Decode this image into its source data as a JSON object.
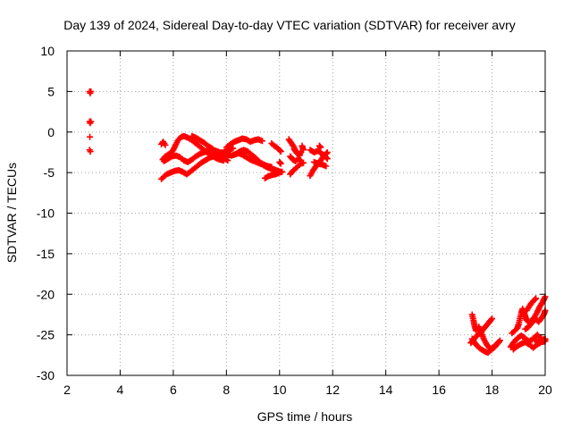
{
  "chart_data": {
    "type": "scatter",
    "title": "Day 139 of 2024, Sidereal Day-to-day VTEC variation (SDTVAR) for receiver avry",
    "xlabel": "GPS time / hours",
    "ylabel": "SDTVAR / TECUs",
    "xlim": [
      2,
      20
    ],
    "ylim": [
      -30,
      10
    ],
    "xticks": [
      2,
      4,
      6,
      8,
      10,
      12,
      14,
      16,
      18,
      20
    ],
    "yticks": [
      -30,
      -25,
      -20,
      -15,
      -10,
      -5,
      0,
      5,
      10
    ],
    "grid": true,
    "marker": "+",
    "colors": {
      "series": "#ff0000",
      "axis": "#000000",
      "grid": "#a0a0a0"
    },
    "series": [
      {
        "name": "SDTVAR",
        "segments": [
          [
            [
              2.85,
              5.0
            ],
            [
              2.87,
              4.8
            ],
            [
              2.9,
              5.0
            ]
          ],
          [
            [
              2.85,
              1.3
            ],
            [
              2.87,
              1.1
            ],
            [
              2.9,
              1.3
            ]
          ],
          [
            [
              2.86,
              -0.6
            ]
          ],
          [
            [
              2.85,
              -2.2
            ],
            [
              2.88,
              -2.4
            ]
          ],
          [
            [
              5.55,
              -1.5
            ],
            [
              5.62,
              -1.2
            ],
            [
              5.7,
              -1.6
            ]
          ],
          [
            [
              5.6,
              -3.4
            ],
            [
              5.7,
              -3.0
            ],
            [
              5.8,
              -2.8
            ],
            [
              5.9,
              -2.6
            ],
            [
              6.0,
              -2.2
            ],
            [
              6.1,
              -1.5
            ],
            [
              6.2,
              -0.9
            ],
            [
              6.3,
              -0.6
            ],
            [
              6.4,
              -0.5
            ],
            [
              6.55,
              -0.7
            ],
            [
              6.7,
              -1.0
            ],
            [
              6.85,
              -1.4
            ],
            [
              7.0,
              -1.8
            ],
            [
              7.15,
              -2.2
            ],
            [
              7.3,
              -2.6
            ],
            [
              7.45,
              -2.9
            ],
            [
              7.6,
              -3.2
            ],
            [
              7.75,
              -3.4
            ],
            [
              7.9,
              -3.5
            ]
          ],
          [
            [
              5.55,
              -5.8
            ],
            [
              5.65,
              -5.5
            ],
            [
              5.75,
              -5.2
            ],
            [
              5.9,
              -5.0
            ],
            [
              6.05,
              -4.8
            ],
            [
              6.2,
              -4.7
            ],
            [
              6.35,
              -4.9
            ],
            [
              6.5,
              -5.2
            ],
            [
              6.6,
              -5.0
            ],
            [
              6.75,
              -4.6
            ],
            [
              6.9,
              -4.2
            ],
            [
              7.05,
              -3.8
            ],
            [
              7.2,
              -3.5
            ],
            [
              7.35,
              -3.2
            ],
            [
              7.5,
              -3.0
            ],
            [
              7.65,
              -2.8
            ],
            [
              7.8,
              -2.6
            ],
            [
              7.95,
              -2.4
            ],
            [
              8.1,
              -2.2
            ],
            [
              8.25,
              -2.0
            ]
          ],
          [
            [
              5.65,
              -3.6
            ],
            [
              5.8,
              -3.3
            ],
            [
              5.95,
              -3.0
            ],
            [
              6.1,
              -2.9
            ],
            [
              6.25,
              -3.1
            ],
            [
              6.4,
              -3.5
            ],
            [
              6.55,
              -3.7
            ],
            [
              6.7,
              -3.4
            ],
            [
              6.85,
              -3.0
            ],
            [
              7.0,
              -2.7
            ],
            [
              7.15,
              -2.5
            ],
            [
              7.3,
              -2.3
            ],
            [
              7.45,
              -2.2
            ],
            [
              7.6,
              -2.3
            ],
            [
              7.75,
              -2.5
            ],
            [
              7.9,
              -2.6
            ],
            [
              8.05,
              -2.8
            ],
            [
              8.2,
              -2.9
            ],
            [
              8.35,
              -2.7
            ],
            [
              8.5,
              -2.4
            ],
            [
              8.65,
              -2.2
            ],
            [
              8.8,
              -2.4
            ],
            [
              8.95,
              -2.8
            ],
            [
              9.1,
              -3.2
            ],
            [
              9.25,
              -3.7
            ],
            [
              9.4,
              -4.0
            ],
            [
              9.55,
              -4.2
            ],
            [
              9.7,
              -4.3
            ]
          ],
          [
            [
              6.7,
              -0.5
            ],
            [
              6.85,
              -0.7
            ],
            [
              7.0,
              -1.0
            ],
            [
              7.15,
              -1.3
            ],
            [
              7.3,
              -1.7
            ],
            [
              7.45,
              -2.0
            ],
            [
              7.6,
              -2.4
            ],
            [
              7.75,
              -2.8
            ],
            [
              7.9,
              -3.2
            ],
            [
              8.05,
              -3.5
            ]
          ],
          [
            [
              8.0,
              -1.9
            ],
            [
              8.15,
              -1.5
            ],
            [
              8.3,
              -1.2
            ],
            [
              8.45,
              -1.0
            ],
            [
              8.6,
              -0.8
            ],
            [
              8.75,
              -0.9
            ],
            [
              8.9,
              -1.2
            ],
            [
              9.05,
              -1.0
            ],
            [
              9.2,
              -0.9
            ],
            [
              9.35,
              -1.1
            ]
          ],
          [
            [
              8.3,
              -2.8
            ],
            [
              8.45,
              -2.6
            ],
            [
              8.6,
              -2.8
            ],
            [
              8.75,
              -3.1
            ],
            [
              8.9,
              -3.4
            ],
            [
              9.05,
              -3.6
            ],
            [
              9.2,
              -3.8
            ],
            [
              9.35,
              -4.0
            ],
            [
              9.5,
              -4.3
            ],
            [
              9.65,
              -4.5
            ],
            [
              9.8,
              -4.6
            ],
            [
              9.95,
              -4.8
            ],
            [
              10.05,
              -4.9
            ]
          ],
          [
            [
              9.45,
              -5.7
            ],
            [
              9.55,
              -5.5
            ],
            [
              9.7,
              -5.3
            ],
            [
              9.85,
              -5.2
            ],
            [
              10.0,
              -5.0
            ],
            [
              10.1,
              -4.9
            ]
          ],
          [
            [
              9.7,
              -1.4
            ],
            [
              9.8,
              -1.7
            ],
            [
              9.9,
              -1.9
            ],
            [
              10.0,
              -2.2
            ],
            [
              10.05,
              -2.4
            ]
          ],
          [
            [
              10.0,
              -3.7
            ],
            [
              10.05,
              -3.9
            ]
          ],
          [
            [
              10.35,
              -0.9
            ],
            [
              10.45,
              -1.4
            ],
            [
              10.55,
              -1.9
            ],
            [
              10.6,
              -2.3
            ]
          ],
          [
            [
              10.4,
              -3.0
            ],
            [
              10.5,
              -3.4
            ],
            [
              10.6,
              -3.6
            ],
            [
              10.7,
              -3.3
            ],
            [
              10.8,
              -3.5
            ]
          ],
          [
            [
              10.4,
              -5.2
            ],
            [
              10.5,
              -4.8
            ],
            [
              10.6,
              -4.5
            ],
            [
              10.7,
              -4.2
            ],
            [
              10.8,
              -3.9
            ],
            [
              10.9,
              -3.8
            ]
          ],
          [
            [
              10.55,
              -2.1
            ],
            [
              10.65,
              -2.6
            ],
            [
              10.75,
              -2.9
            ],
            [
              10.8,
              -2.4
            ]
          ],
          [
            [
              10.85,
              -1.7
            ],
            [
              10.9,
              -2.2
            ]
          ],
          [
            [
              11.15,
              -5.4
            ],
            [
              11.25,
              -4.8
            ],
            [
              11.35,
              -4.3
            ],
            [
              11.45,
              -3.9
            ],
            [
              11.55,
              -3.5
            ],
            [
              11.65,
              -3.0
            ],
            [
              11.75,
              -2.7
            ],
            [
              11.8,
              -2.5
            ]
          ],
          [
            [
              11.15,
              -2.2
            ],
            [
              11.3,
              -2.5
            ],
            [
              11.45,
              -2.3
            ],
            [
              11.55,
              -2.6
            ],
            [
              11.7,
              -2.9
            ],
            [
              11.8,
              -3.3
            ]
          ],
          [
            [
              11.3,
              -3.7
            ],
            [
              11.45,
              -3.9
            ],
            [
              11.6,
              -4.0
            ],
            [
              11.75,
              -4.2
            ]
          ],
          [
            [
              11.5,
              -1.7
            ],
            [
              11.55,
              -1.9
            ]
          ],
          [
            [
              17.25,
              -22.5
            ],
            [
              17.3,
              -23.2
            ],
            [
              17.35,
              -24.0
            ],
            [
              17.4,
              -24.5
            ]
          ],
          [
            [
              17.2,
              -26.0
            ],
            [
              17.3,
              -25.6
            ],
            [
              17.4,
              -25.2
            ],
            [
              17.5,
              -24.9
            ],
            [
              17.6,
              -24.6
            ],
            [
              17.7,
              -24.2
            ],
            [
              17.8,
              -23.8
            ],
            [
              17.9,
              -23.4
            ],
            [
              18.0,
              -23.0
            ]
          ],
          [
            [
              17.25,
              -25.5
            ],
            [
              17.35,
              -26.0
            ],
            [
              17.45,
              -26.4
            ],
            [
              17.55,
              -26.7
            ],
            [
              17.65,
              -26.9
            ],
            [
              17.75,
              -27.1
            ],
            [
              17.85,
              -27.2
            ],
            [
              17.95,
              -26.9
            ],
            [
              18.05,
              -26.5
            ],
            [
              18.15,
              -26.2
            ],
            [
              18.25,
              -25.9
            ]
          ],
          [
            [
              17.5,
              -24.0
            ],
            [
              17.6,
              -24.8
            ],
            [
              17.7,
              -25.6
            ],
            [
              17.8,
              -26.2
            ],
            [
              17.9,
              -26.6
            ],
            [
              18.0,
              -26.8
            ],
            [
              18.1,
              -26.5
            ],
            [
              18.2,
              -26.1
            ],
            [
              18.3,
              -25.7
            ]
          ],
          [
            [
              18.7,
              -26.5
            ],
            [
              18.8,
              -26.0
            ],
            [
              18.9,
              -25.6
            ],
            [
              19.0,
              -25.3
            ],
            [
              19.1,
              -25.1
            ],
            [
              19.2,
              -25.3
            ],
            [
              19.3,
              -25.6
            ],
            [
              19.4,
              -25.8
            ],
            [
              19.5,
              -25.6
            ],
            [
              19.6,
              -25.3
            ],
            [
              19.7,
              -25.0
            ],
            [
              19.8,
              -25.3
            ],
            [
              19.9,
              -25.6
            ],
            [
              20.0,
              -25.5
            ]
          ],
          [
            [
              18.75,
              -24.8
            ],
            [
              18.85,
              -24.5
            ],
            [
              18.95,
              -24.2
            ],
            [
              19.0,
              -23.7
            ],
            [
              19.05,
              -23.0
            ],
            [
              19.1,
              -22.3
            ],
            [
              19.15,
              -21.8
            ],
            [
              19.2,
              -22.2
            ],
            [
              19.25,
              -22.7
            ],
            [
              19.3,
              -23.2
            ],
            [
              19.4,
              -23.5
            ],
            [
              19.5,
              -23.2
            ],
            [
              19.6,
              -22.8
            ],
            [
              19.7,
              -22.2
            ],
            [
              19.8,
              -21.5
            ],
            [
              19.9,
              -21.0
            ],
            [
              20.0,
              -20.3
            ]
          ],
          [
            [
              18.8,
              -26.8
            ],
            [
              18.95,
              -26.4
            ],
            [
              19.1,
              -26.1
            ],
            [
              19.25,
              -25.9
            ],
            [
              19.4,
              -26.2
            ],
            [
              19.55,
              -26.6
            ],
            [
              19.7,
              -26.2
            ],
            [
              19.85,
              -25.9
            ],
            [
              20.0,
              -25.8
            ]
          ],
          [
            [
              19.25,
              -24.3
            ],
            [
              19.35,
              -24.1
            ],
            [
              19.45,
              -23.7
            ],
            [
              19.55,
              -23.3
            ],
            [
              19.65,
              -23.1
            ],
            [
              19.75,
              -23.4
            ],
            [
              19.85,
              -23.0
            ],
            [
              19.95,
              -22.5
            ],
            [
              20.0,
              -22.0
            ]
          ],
          [
            [
              19.3,
              -22.0
            ],
            [
              19.4,
              -21.5
            ],
            [
              19.5,
              -21.0
            ],
            [
              19.6,
              -20.7
            ],
            [
              19.65,
              -20.5
            ]
          ],
          [
            [
              19.6,
              -25.6
            ],
            [
              19.7,
              -25.8
            ],
            [
              19.8,
              -26.0
            ],
            [
              19.9,
              -25.7
            ],
            [
              20.0,
              -25.6
            ]
          ]
        ]
      }
    ]
  }
}
